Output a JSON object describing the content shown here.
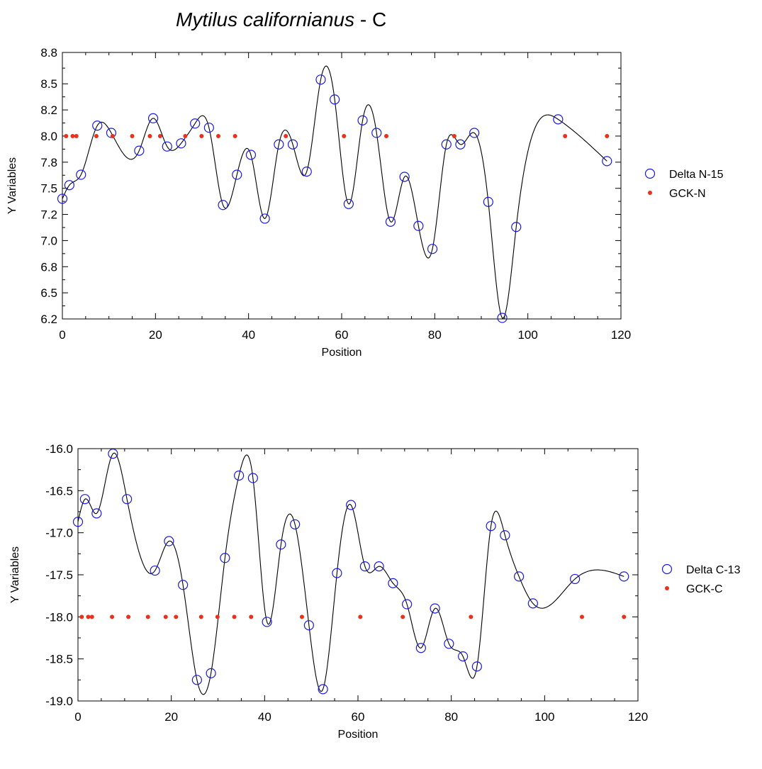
{
  "title": {
    "species": "Mytilus californianus",
    "suffix": " - C"
  },
  "colors": {
    "marker_circle": "#1a1adf",
    "marker_dot": "#e8321a",
    "line": "#000000"
  },
  "chart_data": [
    {
      "type": "scatter",
      "xlabel": "Position",
      "ylabel": "Y Variables",
      "xlim": [
        0,
        120
      ],
      "ylim": [
        6.25,
        8.8
      ],
      "xticks": [
        0,
        20,
        40,
        60,
        80,
        100,
        120
      ],
      "yticks": [
        6.25,
        6.5,
        6.75,
        7.0,
        7.25,
        7.5,
        7.75,
        8.0,
        8.25,
        8.5,
        8.8
      ],
      "ytick_labels": [
        "6.2",
        "6.5",
        "6.8",
        "7.0",
        "7.2",
        "7.5",
        "7.8",
        "8.0",
        "8.2",
        "8.5",
        "8.8"
      ],
      "legend_position": "right",
      "series": [
        {
          "name": "Delta N-15",
          "marker": "open-circle",
          "smooth_line": true,
          "points": [
            [
              0,
              7.4
            ],
            [
              1.5,
              7.53
            ],
            [
              4,
              7.63
            ],
            [
              7.5,
              8.1
            ],
            [
              10.5,
              8.03
            ],
            [
              16.5,
              7.86
            ],
            [
              19.5,
              8.17
            ],
            [
              22.5,
              7.9
            ],
            [
              25.5,
              7.93
            ],
            [
              28.5,
              8.12
            ],
            [
              31.5,
              8.08
            ],
            [
              34.5,
              7.34
            ],
            [
              37.5,
              7.63
            ],
            [
              40.5,
              7.82
            ],
            [
              43.5,
              7.21
            ],
            [
              46.5,
              7.92
            ],
            [
              49.5,
              7.92
            ],
            [
              52.5,
              7.66
            ],
            [
              55.5,
              8.54
            ],
            [
              58.5,
              8.35
            ],
            [
              61.5,
              7.35
            ],
            [
              64.5,
              8.15
            ],
            [
              67.5,
              8.03
            ],
            [
              70.5,
              7.18
            ],
            [
              73.5,
              7.61
            ],
            [
              76.5,
              7.14
            ],
            [
              79.5,
              6.92
            ],
            [
              82.5,
              7.92
            ],
            [
              85.5,
              7.92
            ],
            [
              88.5,
              8.03
            ],
            [
              91.5,
              7.37
            ],
            [
              94.5,
              6.26
            ],
            [
              97.5,
              7.13
            ],
            [
              106.5,
              8.16
            ],
            [
              117,
              7.76
            ]
          ]
        },
        {
          "name": "GCK-N",
          "marker": "filled-dot",
          "points": [
            [
              0.8,
              8
            ],
            [
              2.2,
              8
            ],
            [
              3,
              8
            ],
            [
              7.3,
              8
            ],
            [
              10.8,
              8
            ],
            [
              15,
              8
            ],
            [
              18.8,
              8
            ],
            [
              21,
              8
            ],
            [
              26.4,
              8
            ],
            [
              29.9,
              8
            ],
            [
              33.5,
              8
            ],
            [
              37.1,
              8
            ],
            [
              48,
              8
            ],
            [
              60.5,
              8
            ],
            [
              69.6,
              8
            ],
            [
              84.2,
              8
            ],
            [
              108,
              8
            ],
            [
              117,
              8
            ]
          ]
        }
      ]
    },
    {
      "type": "scatter",
      "xlabel": "Position",
      "ylabel": "Y Variables",
      "xlim": [
        0,
        120
      ],
      "ylim": [
        -19,
        -16
      ],
      "xticks": [
        0,
        20,
        40,
        60,
        80,
        100,
        120
      ],
      "yticks": [
        -19,
        -18.5,
        -18,
        -17.5,
        -17,
        -16.5,
        -16
      ],
      "ytick_labels": [
        "-19.0",
        "-18.5",
        "-18.0",
        "-17.5",
        "-17.0",
        "-16.5",
        "-16.0"
      ],
      "legend_position": "right",
      "series": [
        {
          "name": "Delta C-13",
          "marker": "open-circle",
          "smooth_line": true,
          "points": [
            [
              0,
              -16.87
            ],
            [
              1.5,
              -16.6
            ],
            [
              4,
              -16.77
            ],
            [
              7.5,
              -16.06
            ],
            [
              10.5,
              -16.6
            ],
            [
              16.5,
              -17.45
            ],
            [
              19.5,
              -17.1
            ],
            [
              22.5,
              -17.62
            ],
            [
              25.5,
              -18.75
            ],
            [
              28.5,
              -18.67
            ],
            [
              31.5,
              -17.3
            ],
            [
              34.5,
              -16.32
            ],
            [
              37.5,
              -16.35
            ],
            [
              40.5,
              -18.06
            ],
            [
              43.5,
              -17.14
            ],
            [
              46.5,
              -16.9
            ],
            [
              49.5,
              -18.1
            ],
            [
              52.5,
              -18.86
            ],
            [
              55.5,
              -17.48
            ],
            [
              58.5,
              -16.67
            ],
            [
              61.5,
              -17.4
            ],
            [
              64.5,
              -17.4
            ],
            [
              67.5,
              -17.6
            ],
            [
              70.5,
              -17.85
            ],
            [
              73.5,
              -18.37
            ],
            [
              76.5,
              -17.9
            ],
            [
              79.5,
              -18.32
            ],
            [
              82.5,
              -18.47
            ],
            [
              85.5,
              -18.59
            ],
            [
              88.5,
              -16.92
            ],
            [
              91.5,
              -17.03
            ],
            [
              94.5,
              -17.52
            ],
            [
              97.5,
              -17.84
            ],
            [
              106.5,
              -17.55
            ],
            [
              117,
              -17.52
            ]
          ]
        },
        {
          "name": "GCK-C",
          "marker": "filled-dot",
          "points": [
            [
              0.8,
              -18
            ],
            [
              2.2,
              -18
            ],
            [
              3,
              -18
            ],
            [
              7.3,
              -18
            ],
            [
              10.8,
              -18
            ],
            [
              15,
              -18
            ],
            [
              18.8,
              -18
            ],
            [
              21,
              -18
            ],
            [
              26.4,
              -18
            ],
            [
              29.9,
              -18
            ],
            [
              33.5,
              -18
            ],
            [
              37.1,
              -18
            ],
            [
              48,
              -18
            ],
            [
              60.5,
              -18
            ],
            [
              69.6,
              -18
            ],
            [
              84.2,
              -18
            ],
            [
              108,
              -18
            ],
            [
              117,
              -18
            ]
          ]
        }
      ]
    }
  ]
}
